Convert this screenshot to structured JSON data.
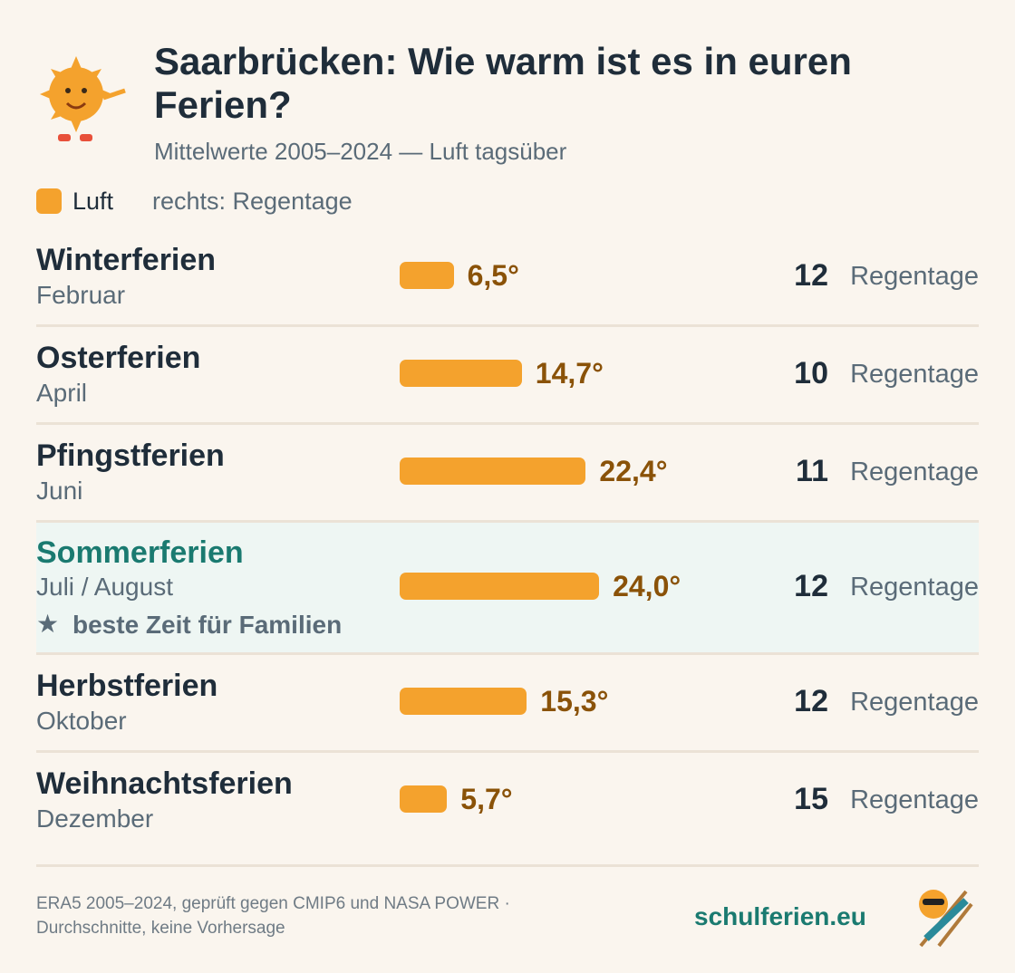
{
  "header": {
    "title": "Saarbrücken: Wie warm ist es in euren Ferien?",
    "subtitle": "Mittelwerte 2005–2024 — Luft tagsüber"
  },
  "legend_note": "rechts: Regentage",
  "chart_data": {
    "type": "bar",
    "categories": [
      "Winterferien",
      "Osterferien",
      "Pfingstferien",
      "Sommerferien",
      "Herbstferien",
      "Weihnachtsferien"
    ],
    "months": [
      "Februar",
      "April",
      "Juni",
      "Juli / August",
      "Oktober",
      "Dezember"
    ],
    "series": [
      {
        "name": "Luft",
        "color": "#f4a22d",
        "values": [
          6.5,
          14.7,
          22.4,
          24.0,
          15.3,
          5.7
        ],
        "value_labels": [
          "6,5°",
          "14,7°",
          "22,4°",
          "24,0°",
          "15,3°",
          "5,7°"
        ]
      }
    ],
    "rain_days": [
      12,
      10,
      11,
      12,
      12,
      15
    ],
    "rain_unit": "Regentage",
    "highlight": {
      "index": 3,
      "note": "beste Zeit für Familien"
    }
  },
  "footer": {
    "source_line1": "ERA5 2005–2024, geprüft gegen CMIP6 und NASA POWER ·",
    "source_line2": "Durchschnitte, keine Vorhersage",
    "brand": "schulferien.eu"
  }
}
